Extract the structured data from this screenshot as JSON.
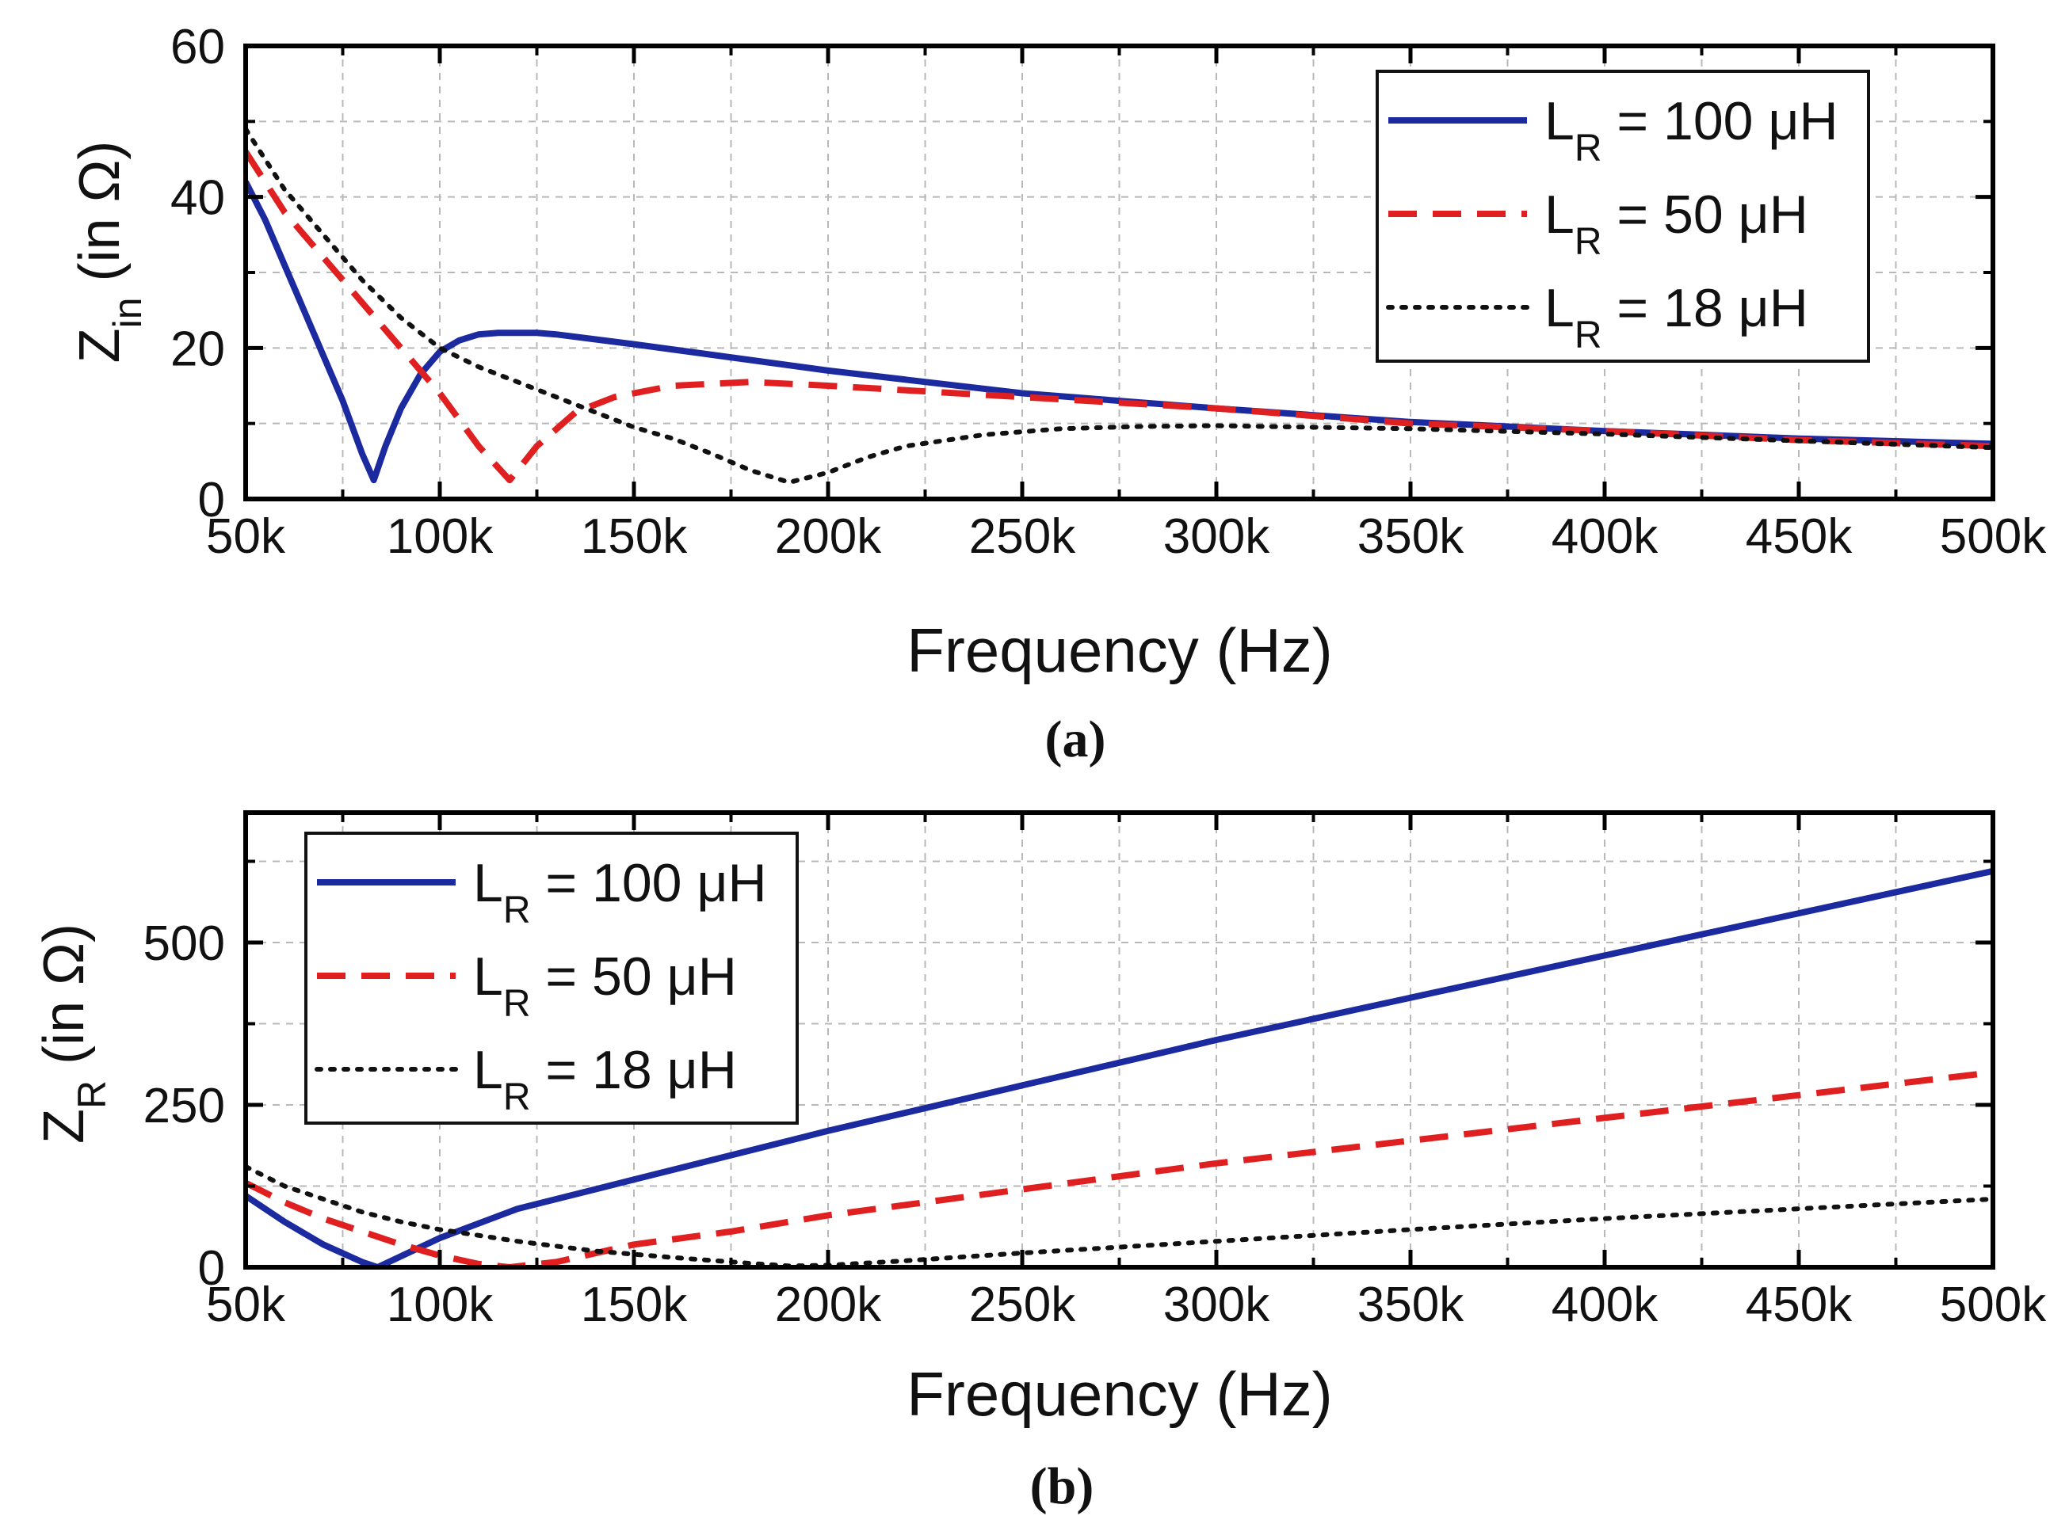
{
  "chart_data": [
    {
      "type": "line",
      "panel_label": "(a)",
      "xlabel": "Frequency (Hz)",
      "ylabel_main": "Z",
      "ylabel_sub": "in",
      "ylabel_rest": " (in Ω)",
      "xlim": [
        50000,
        500000
      ],
      "ylim": [
        0,
        60
      ],
      "grid": true,
      "x_ticks": [
        50000,
        100000,
        150000,
        200000,
        250000,
        300000,
        350000,
        400000,
        450000,
        500000
      ],
      "x_tick_labels": [
        "50k",
        "100k",
        "150k",
        "200k",
        "250k",
        "300k",
        "350k",
        "400k",
        "450k",
        "500k"
      ],
      "y_ticks": [
        0,
        20,
        40,
        60
      ],
      "y_tick_labels": [
        "0",
        "20",
        "40",
        "60"
      ],
      "legend_position": "top-right",
      "series": [
        {
          "name": "L_R = 100 μH",
          "legend_main": "L",
          "legend_sub": "R",
          "legend_rest": " = 100 μH",
          "style": "solid",
          "color": "#1c2aa0",
          "points": [
            [
              50000,
              42
            ],
            [
              55000,
              37
            ],
            [
              60000,
              31
            ],
            [
              65000,
              25
            ],
            [
              70000,
              19
            ],
            [
              75000,
              13
            ],
            [
              80000,
              6
            ],
            [
              83000,
              2.5
            ],
            [
              86000,
              7
            ],
            [
              90000,
              12
            ],
            [
              95000,
              16.5
            ],
            [
              100000,
              19.5
            ],
            [
              105000,
              21
            ],
            [
              110000,
              21.8
            ],
            [
              115000,
              22
            ],
            [
              120000,
              22
            ],
            [
              125000,
              22
            ],
            [
              130000,
              21.8
            ],
            [
              150000,
              20.5
            ],
            [
              200000,
              17
            ],
            [
              250000,
              14
            ],
            [
              300000,
              12
            ],
            [
              350000,
              10.2
            ],
            [
              400000,
              9
            ],
            [
              450000,
              8
            ],
            [
              500000,
              7.3
            ]
          ]
        },
        {
          "name": "L_R = 50 μH",
          "legend_main": "L",
          "legend_sub": "R",
          "legend_rest": " = 50 μH",
          "style": "dashed",
          "color": "#e02020",
          "points": [
            [
              50000,
              46
            ],
            [
              60000,
              38
            ],
            [
              70000,
              32
            ],
            [
              80000,
              26
            ],
            [
              90000,
              20
            ],
            [
              100000,
              14
            ],
            [
              110000,
              7
            ],
            [
              118000,
              2.5
            ],
            [
              125000,
              7
            ],
            [
              135000,
              11.5
            ],
            [
              145000,
              13.5
            ],
            [
              160000,
              15
            ],
            [
              180000,
              15.5
            ],
            [
              200000,
              15
            ],
            [
              250000,
              13.5
            ],
            [
              300000,
              12
            ],
            [
              350000,
              10
            ],
            [
              400000,
              9
            ],
            [
              450000,
              7.8
            ],
            [
              500000,
              7
            ]
          ]
        },
        {
          "name": "L_R = 18 μH",
          "legend_main": "L",
          "legend_sub": "R",
          "legend_rest": " = 18 μH",
          "style": "dotted",
          "color": "#111111",
          "points": [
            [
              50000,
              49
            ],
            [
              60000,
              41
            ],
            [
              70000,
              35
            ],
            [
              80000,
              29
            ],
            [
              90000,
              24
            ],
            [
              100000,
              20
            ],
            [
              110000,
              17.5
            ],
            [
              120000,
              15.5
            ],
            [
              130000,
              13.5
            ],
            [
              140000,
              11.5
            ],
            [
              150000,
              9.5
            ],
            [
              160000,
              8
            ],
            [
              170000,
              6
            ],
            [
              180000,
              3.8
            ],
            [
              190000,
              2.2
            ],
            [
              200000,
              3.5
            ],
            [
              210000,
              5.5
            ],
            [
              220000,
              7
            ],
            [
              240000,
              8.5
            ],
            [
              260000,
              9.3
            ],
            [
              280000,
              9.6
            ],
            [
              300000,
              9.7
            ],
            [
              350000,
              9.3
            ],
            [
              400000,
              8.6
            ],
            [
              450000,
              7.7
            ],
            [
              500000,
              6.8
            ]
          ]
        }
      ]
    },
    {
      "type": "line",
      "panel_label": "(b)",
      "xlabel": "Frequency (Hz)",
      "ylabel_main": "Z",
      "ylabel_sub": "R",
      "ylabel_rest": " (in Ω)",
      "xlim": [
        50000,
        500000
      ],
      "ylim": [
        0,
        700
      ],
      "grid": true,
      "x_ticks": [
        50000,
        100000,
        150000,
        200000,
        250000,
        300000,
        350000,
        400000,
        450000,
        500000
      ],
      "x_tick_labels": [
        "50k",
        "100k",
        "150k",
        "200k",
        "250k",
        "300k",
        "350k",
        "400k",
        "450k",
        "500k"
      ],
      "y_ticks": [
        0,
        250,
        500
      ],
      "y_tick_labels": [
        "0",
        "250",
        "500"
      ],
      "y_grid": [
        0,
        125,
        250,
        375,
        500,
        625
      ],
      "legend_position": "top-left",
      "series": [
        {
          "name": "L_R = 100 μH",
          "legend_main": "L",
          "legend_sub": "R",
          "legend_rest": " = 100 μH",
          "style": "solid",
          "color": "#1c2aa0",
          "points": [
            [
              50000,
              110
            ],
            [
              60000,
              70
            ],
            [
              70000,
              35
            ],
            [
              80000,
              8
            ],
            [
              84000,
              0
            ],
            [
              90000,
              17
            ],
            [
              100000,
              45
            ],
            [
              120000,
              90
            ],
            [
              150000,
              135
            ],
            [
              200000,
              210
            ],
            [
              250000,
              280
            ],
            [
              300000,
              350
            ],
            [
              350000,
              415
            ],
            [
              400000,
              480
            ],
            [
              450000,
              545
            ],
            [
              500000,
              610
            ]
          ]
        },
        {
          "name": "L_R = 50 μH",
          "legend_main": "L",
          "legend_sub": "R",
          "legend_rest": " = 50 μH",
          "style": "dashed",
          "color": "#e02020",
          "points": [
            [
              50000,
              130
            ],
            [
              60000,
              100
            ],
            [
              70000,
              75
            ],
            [
              80000,
              55
            ],
            [
              90000,
              35
            ],
            [
              100000,
              18
            ],
            [
              110000,
              5
            ],
            [
              118000,
              0
            ],
            [
              130000,
              8
            ],
            [
              150000,
              35
            ],
            [
              175000,
              55
            ],
            [
              200000,
              80
            ],
            [
              250000,
              120
            ],
            [
              300000,
              160
            ],
            [
              350000,
              195
            ],
            [
              400000,
              230
            ],
            [
              450000,
              265
            ],
            [
              500000,
              300
            ]
          ]
        },
        {
          "name": "L_R = 18 μH",
          "legend_main": "L",
          "legend_sub": "R",
          "legend_rest": " = 18 μH",
          "style": "dotted",
          "color": "#111111",
          "points": [
            [
              50000,
              155
            ],
            [
              60000,
              125
            ],
            [
              70000,
              105
            ],
            [
              80000,
              85
            ],
            [
              90000,
              70
            ],
            [
              100000,
              58
            ],
            [
              120000,
              40
            ],
            [
              140000,
              25
            ],
            [
              160000,
              15
            ],
            [
              180000,
              6
            ],
            [
              190000,
              2
            ],
            [
              200000,
              3
            ],
            [
              220000,
              10
            ],
            [
              250000,
              22
            ],
            [
              300000,
              40
            ],
            [
              350000,
              58
            ],
            [
              400000,
              75
            ],
            [
              450000,
              90
            ],
            [
              500000,
              105
            ]
          ]
        }
      ]
    }
  ]
}
